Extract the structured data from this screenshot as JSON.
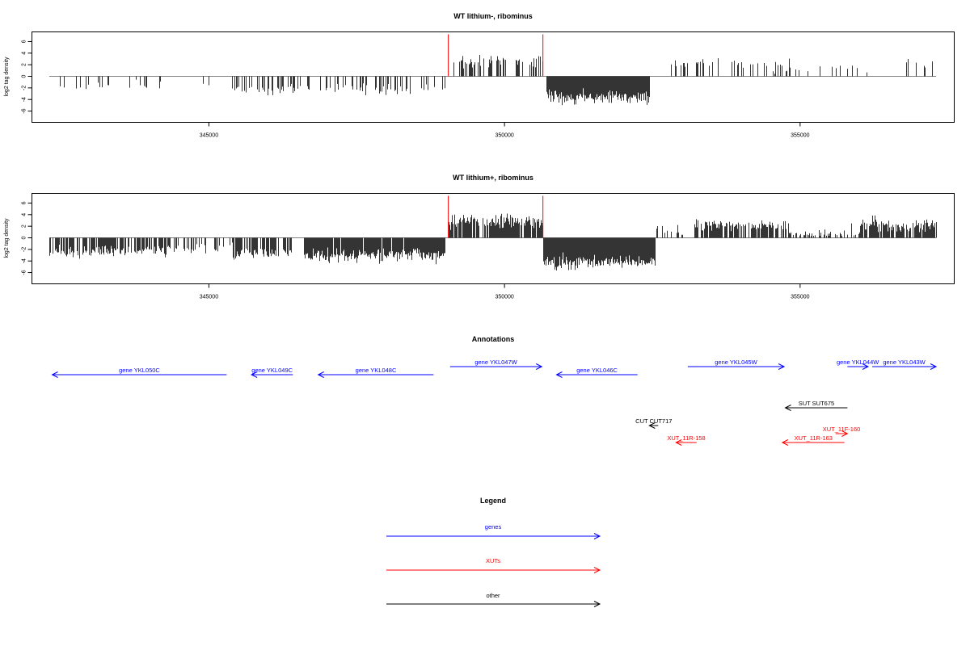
{
  "chart_data": [
    {
      "type": "bar",
      "title": "WT lithium-, ribominus",
      "xlabel": "",
      "ylabel": "log2 tag density",
      "xlim": [
        342000,
        357600
      ],
      "ylim": [
        -7.5,
        7
      ],
      "x_ticks": [
        345000,
        350000,
        355000
      ],
      "x_tick_labels": [
        "345000",
        "350000",
        "355000"
      ],
      "y_ticks": [
        6,
        4,
        2,
        0,
        -2,
        -4,
        -6
      ],
      "y_tick_labels": [
        "6",
        "4",
        "2",
        "0",
        "-2",
        "-4",
        "-6"
      ],
      "baseline_range": [
        342300,
        357300
      ],
      "marker_lines": [
        349050,
        350650
      ],
      "marker_color": "#ff0000",
      "line_color": "#000000",
      "segments": [
        {
          "from": 342300,
          "to": 343300,
          "density": 0.12,
          "mean": -1.8,
          "spread": 0.6
        },
        {
          "from": 343300,
          "to": 344200,
          "density": 0.08,
          "mean": -1.6,
          "spread": 0.8
        },
        {
          "from": 344200,
          "to": 345350,
          "density": 0.04,
          "mean": -1.5,
          "spread": 0.5
        },
        {
          "from": 345350,
          "to": 346300,
          "density": 0.45,
          "mean": -2.5,
          "spread": 1.0
        },
        {
          "from": 346300,
          "to": 347200,
          "density": 0.2,
          "mean": -2.0,
          "spread": 0.8
        },
        {
          "from": 347200,
          "to": 348400,
          "density": 0.35,
          "mean": -2.3,
          "spread": 0.9
        },
        {
          "from": 348400,
          "to": 349000,
          "density": 0.12,
          "mean": -2.0,
          "spread": 0.8
        },
        {
          "from": 349100,
          "to": 350650,
          "density": 0.4,
          "mean": 2.5,
          "spread": 1.1
        },
        {
          "from": 350700,
          "to": 352450,
          "density": 1.0,
          "mean": -3.6,
          "spread": 1.2
        },
        {
          "from": 352800,
          "to": 354450,
          "density": 0.25,
          "mean": 2.2,
          "spread": 0.7
        },
        {
          "from": 354450,
          "to": 355200,
          "density": 0.35,
          "mean": 1.5,
          "spread": 2.0
        },
        {
          "from": 355200,
          "to": 356200,
          "density": 0.08,
          "mean": 1.2,
          "spread": 0.8
        },
        {
          "from": 356200,
          "to": 357300,
          "density": 0.12,
          "mean": 2.5,
          "spread": 1.0
        }
      ]
    },
    {
      "type": "bar",
      "title": "WT lithium+, ribominus",
      "xlabel": "",
      "ylabel": "log2 tag density",
      "xlim": [
        342000,
        357600
      ],
      "ylim": [
        -7.5,
        7
      ],
      "x_ticks": [
        345000,
        350000,
        355000
      ],
      "x_tick_labels": [
        "345000",
        "350000",
        "355000"
      ],
      "y_ticks": [
        6,
        4,
        2,
        0,
        -2,
        -4,
        -6
      ],
      "y_tick_labels": [
        "6",
        "4",
        "2",
        "0",
        "-2",
        "-4",
        "-6"
      ],
      "baseline_range": [
        342300,
        357300
      ],
      "marker_lines": [
        349050,
        350650
      ],
      "marker_color": "#ff0000",
      "line_color": "#000000",
      "segments": [
        {
          "from": 342300,
          "to": 344300,
          "density": 0.7,
          "mean": -2.3,
          "spread": 1.0
        },
        {
          "from": 344300,
          "to": 345400,
          "density": 0.35,
          "mean": -1.8,
          "spread": 0.9
        },
        {
          "from": 345400,
          "to": 346400,
          "density": 0.75,
          "mean": -2.6,
          "spread": 1.0
        },
        {
          "from": 346600,
          "to": 349000,
          "density": 0.95,
          "mean": -3.0,
          "spread": 1.2
        },
        {
          "from": 349050,
          "to": 350650,
          "density": 0.85,
          "mean": 2.8,
          "spread": 1.2
        },
        {
          "from": 350650,
          "to": 352550,
          "density": 1.0,
          "mean": -4.2,
          "spread": 1.3
        },
        {
          "from": 352550,
          "to": 353200,
          "density": 0.3,
          "mean": 1.0,
          "spread": 1.2
        },
        {
          "from": 353200,
          "to": 354800,
          "density": 0.75,
          "mean": 2.2,
          "spread": 1.0
        },
        {
          "from": 354800,
          "to": 356000,
          "density": 0.45,
          "mean": 0.2,
          "spread": 2.2
        },
        {
          "from": 356000,
          "to": 357300,
          "density": 0.85,
          "mean": 2.2,
          "spread": 1.3
        }
      ]
    }
  ],
  "annotations": {
    "title": "Annotations",
    "features": [
      {
        "label": "gene YKL050C",
        "color": "#0000ff",
        "direction": "left",
        "from": 342350,
        "to": 345300,
        "row": 0
      },
      {
        "label": "gene YKL049C",
        "color": "#0000ff",
        "direction": "left",
        "from": 345720,
        "to": 346420,
        "row": 0
      },
      {
        "label": "gene YKL048C",
        "color": "#0000ff",
        "direction": "left",
        "from": 346850,
        "to": 348800,
        "row": 0
      },
      {
        "label": "gene YKL047W",
        "color": "#0000ff",
        "direction": "right",
        "from": 349080,
        "to": 350630,
        "row": 1
      },
      {
        "label": "gene YKL046C",
        "color": "#0000ff",
        "direction": "left",
        "from": 350880,
        "to": 352250,
        "row": 0
      },
      {
        "label": "gene YKL045W",
        "color": "#0000ff",
        "direction": "right",
        "from": 353100,
        "to": 354730,
        "row": 1
      },
      {
        "label": "gene YKL044W",
        "color": "#0000ff",
        "direction": "right",
        "from": 355800,
        "to": 356150,
        "row": 1
      },
      {
        "label": "gene YKL043W",
        "color": "#0000ff",
        "direction": "right",
        "from": 356220,
        "to": 357300,
        "row": 1
      },
      {
        "label": "SUT SUT675",
        "color": "#000000",
        "direction": "left",
        "from": 354750,
        "to": 355800,
        "row": 2
      },
      {
        "label": "CUT CUT717",
        "color": "#000000",
        "direction": "left",
        "from": 352450,
        "to": 352600,
        "row": 3
      },
      {
        "label": "XUT_11F-160",
        "color": "#ff0000",
        "direction": "right",
        "from": 355600,
        "to": 355800,
        "row": 4
      },
      {
        "label": "XUT_11R-158",
        "color": "#ff0000",
        "direction": "left",
        "from": 352900,
        "to": 353250,
        "row": 5
      },
      {
        "label": "XUT_11R-163",
        "color": "#ff0000",
        "direction": "left",
        "from": 354700,
        "to": 355750,
        "row": 5
      }
    ]
  },
  "legend": {
    "title": "Legend",
    "items": [
      {
        "label": "genes",
        "color": "#0000ff"
      },
      {
        "label": "XUTs",
        "color": "#ff0000"
      },
      {
        "label": "other",
        "color": "#000000"
      }
    ]
  }
}
